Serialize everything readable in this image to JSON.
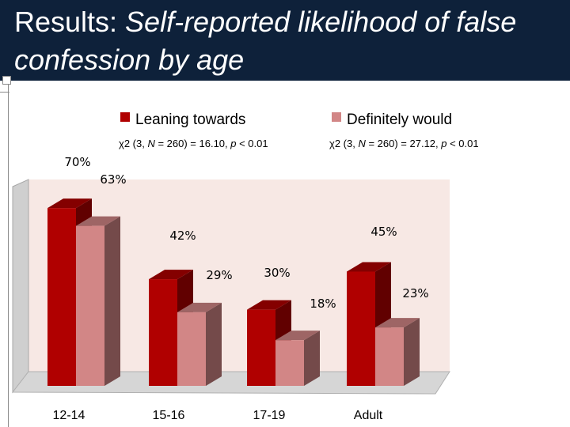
{
  "slide": {
    "title_plain": "Results: ",
    "title_italic": "Self-reported likelihood of false confession by age"
  },
  "colors": {
    "header_bg": "#0e213a",
    "leaning": "#b00000",
    "definitely": "#d28686",
    "plot_bg": "#f7e8e4"
  },
  "chart_data": {
    "type": "bar",
    "title": "Self-reported likelihood of false confession by age",
    "categories": [
      "12-14",
      "15-16",
      "17-19",
      "Adult"
    ],
    "series": [
      {
        "name": "Leaning towards",
        "values": [
          70,
          42,
          30,
          45
        ],
        "labels": [
          "70%",
          "42%",
          "30%",
          "45%"
        ]
      },
      {
        "name": "Definitely would",
        "values": [
          63,
          29,
          18,
          23
        ],
        "labels": [
          "63%",
          "29%",
          "18%",
          "23%"
        ]
      }
    ],
    "stats": [
      "χ2 (3, N = 260) = 16.10, p < 0.01",
      "χ2 (3, N = 260) = 27.12, p < 0.01"
    ],
    "ylim": [
      0,
      80
    ],
    "legend_position": "top",
    "grid": false
  }
}
